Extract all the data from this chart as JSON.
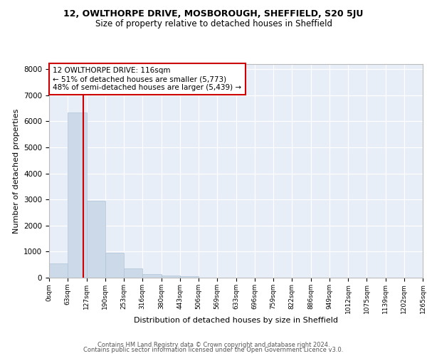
{
  "title1": "12, OWLTHORPE DRIVE, MOSBOROUGH, SHEFFIELD, S20 5JU",
  "title2": "Size of property relative to detached houses in Sheffield",
  "xlabel": "Distribution of detached houses by size in Sheffield",
  "ylabel": "Number of detached properties",
  "bar_color": "#ccd9e8",
  "bar_edge_color": "#b0c4d8",
  "vline_color": "#cc0000",
  "vline_x": 116,
  "annotation_title": "12 OWLTHORPE DRIVE: 116sqm",
  "annotation_line2": "← 51% of detached houses are smaller (5,773)",
  "annotation_line3": "48% of semi-detached houses are larger (5,439) →",
  "bin_edges": [
    0,
    63,
    127,
    190,
    253,
    316,
    380,
    443,
    506,
    569,
    633,
    696,
    759,
    822,
    886,
    949,
    1012,
    1075,
    1139,
    1202,
    1265
  ],
  "bin_labels": [
    "0sqm",
    "63sqm",
    "127sqm",
    "190sqm",
    "253sqm",
    "316sqm",
    "380sqm",
    "443sqm",
    "506sqm",
    "569sqm",
    "633sqm",
    "696sqm",
    "759sqm",
    "822sqm",
    "886sqm",
    "949sqm",
    "1012sqm",
    "1075sqm",
    "1139sqm",
    "1202sqm",
    "1265sqm"
  ],
  "bar_heights": [
    550,
    6350,
    2950,
    950,
    350,
    150,
    90,
    50,
    0,
    0,
    0,
    0,
    0,
    0,
    0,
    0,
    0,
    0,
    0,
    0
  ],
  "ylim": [
    0,
    8200
  ],
  "yticks": [
    0,
    1000,
    2000,
    3000,
    4000,
    5000,
    6000,
    7000,
    8000
  ],
  "footer1": "Contains HM Land Registry data © Crown copyright and database right 2024.",
  "footer2": "Contains public sector information licensed under the Open Government Licence v3.0.",
  "plot_bg_color": "#e8eef8",
  "grid_color": "#ffffff",
  "fig_bg_color": "#ffffff"
}
